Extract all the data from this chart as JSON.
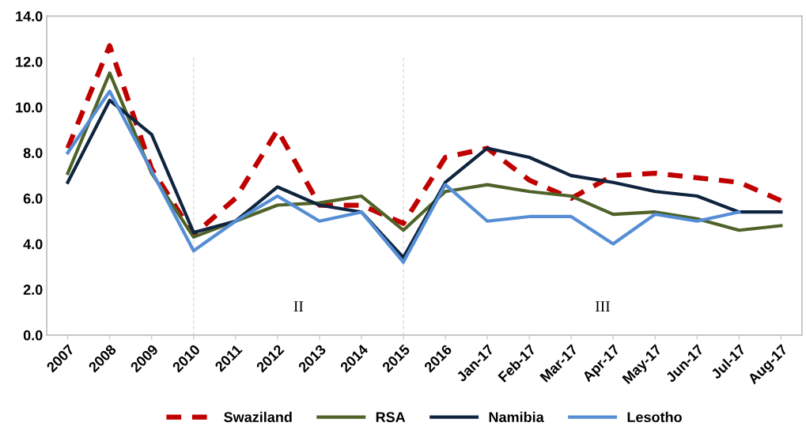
{
  "chart_data": {
    "type": "line",
    "categories": [
      "2007",
      "2008",
      "2009",
      "2010",
      "2011",
      "2012",
      "2013",
      "2014",
      "2015",
      "2016",
      "Jan-17",
      "Feb-17",
      "Mar-17",
      "Apr-17",
      "May-17",
      "Jun-17",
      "Jul-17",
      "Aug-17"
    ],
    "series": [
      {
        "name": "Swaziland",
        "color": "#c00000",
        "line_style": "dashed",
        "values": [
          8.2,
          12.7,
          7.3,
          4.4,
          6.0,
          9.0,
          5.7,
          5.7,
          4.9,
          7.8,
          8.2,
          6.8,
          6.0,
          7.0,
          7.1,
          6.9,
          6.7,
          5.9
        ]
      },
      {
        "name": "RSA",
        "color": "#4f6228",
        "line_style": "solid",
        "values": [
          7.1,
          11.5,
          7.1,
          4.3,
          5.0,
          5.7,
          5.8,
          6.1,
          4.6,
          6.3,
          6.6,
          6.3,
          6.1,
          5.3,
          5.4,
          5.1,
          4.6,
          4.8
        ]
      },
      {
        "name": "Namibia",
        "color": "#0f243e",
        "line_style": "solid",
        "values": [
          6.7,
          10.3,
          8.8,
          4.5,
          5.0,
          6.5,
          5.7,
          5.4,
          3.4,
          6.7,
          8.2,
          7.8,
          7.0,
          6.7,
          6.3,
          6.1,
          5.4,
          5.4
        ]
      },
      {
        "name": "Lesotho",
        "color": "#558ed5",
        "line_style": "solid",
        "values": [
          8.0,
          10.7,
          7.2,
          3.7,
          5.0,
          6.1,
          5.0,
          5.4,
          3.2,
          6.6,
          5.0,
          5.2,
          5.2,
          4.0,
          5.3,
          5.0,
          5.4,
          null
        ]
      }
    ],
    "ylim": [
      0,
      14
    ],
    "yticks": [
      {
        "value": 0,
        "label": "0.0"
      },
      {
        "value": 2,
        "label": "2.0"
      },
      {
        "value": 4,
        "label": "4.0"
      },
      {
        "value": 6,
        "label": "6.0"
      },
      {
        "value": 8,
        "label": "8.0"
      },
      {
        "value": 10,
        "label": "10.0"
      },
      {
        "value": 12,
        "label": "12.0"
      },
      {
        "value": 14,
        "label": "14.0"
      }
    ],
    "ref_lines": [
      {
        "axis": "x",
        "value": "2010",
        "color": "#d9d9d9",
        "line_style": "dashed"
      },
      {
        "axis": "x",
        "value": "2015",
        "color": "#d9d9d9",
        "line_style": "dashed"
      }
    ],
    "annotations": [
      "II",
      "III"
    ],
    "grid": false,
    "legend": "bottom",
    "marker": "none"
  }
}
